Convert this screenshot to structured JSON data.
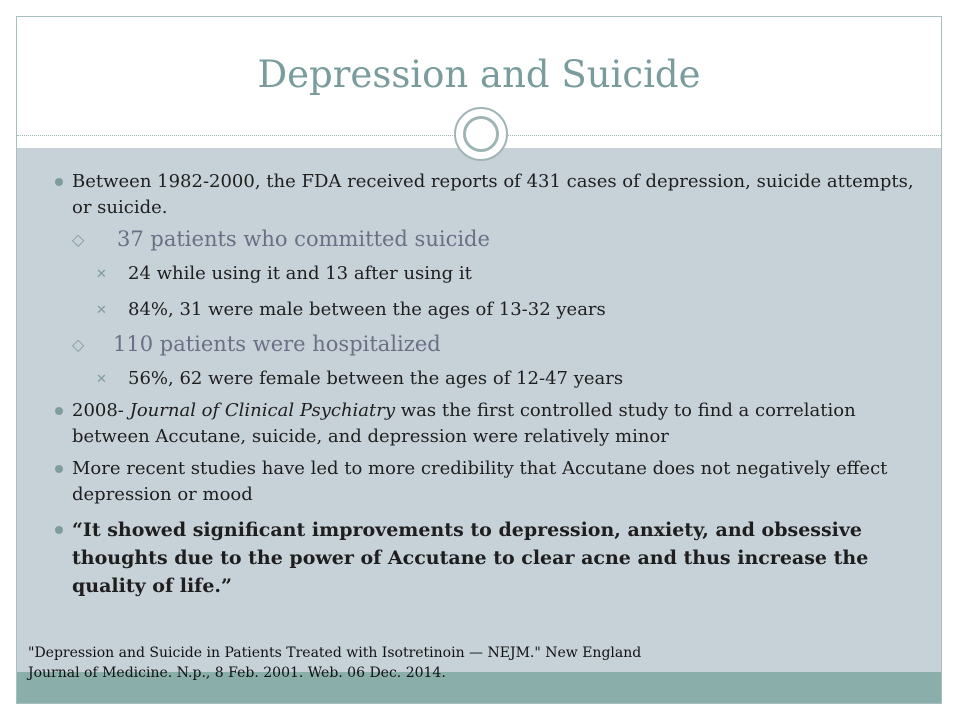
{
  "slide": {
    "title": "Depression and Suicide",
    "bullets": [
      {
        "text": "Between 1982-2000, the FDA received reports of 431 cases of depression, suicide attempts, or suicide."
      },
      {
        "text": "37 patients who committed suicide"
      },
      {
        "text": "24 while using it and 13 after using it"
      },
      {
        "text": "84%, 31 were male between the ages of 13-32 years"
      },
      {
        "text": "110 patients were hospitalized"
      },
      {
        "text": "56%, 62 were female between the ages of 12-47 years"
      },
      {
        "prefix": "2008- ",
        "italic": "Journal of Clinical Psychiatry",
        "suffix": " was the first controlled study to find a correlation between Accutane, suicide, and depression were relatively minor"
      },
      {
        "text": "More recent studies have led to more credibility that Accutane does not negatively effect depression or mood"
      },
      {
        "text": "“It showed significant improvements to depression, anxiety, and obsessive thoughts due to the power of Accutane to clear acne and thus increase the quality of life.”"
      }
    ],
    "reference_line1": "\"Depression and Suicide in Patients Treated with Isotretinoin — NEJM.\" New England",
    "reference_line2": "Journal of Medicine. N.p., 8 Feb. 2001. Web. 06 Dec. 2014."
  },
  "bullet_symbols": {
    "level1": "filled-circle",
    "level2": "open-diamond",
    "level3": "x-mark"
  },
  "colors": {
    "title": "#7a9c9c",
    "body_background": "#c7d1d8",
    "bottom_band": "#8aaeaa",
    "level2_text": "#6b6f85",
    "bullet": "#7f9c9c"
  }
}
